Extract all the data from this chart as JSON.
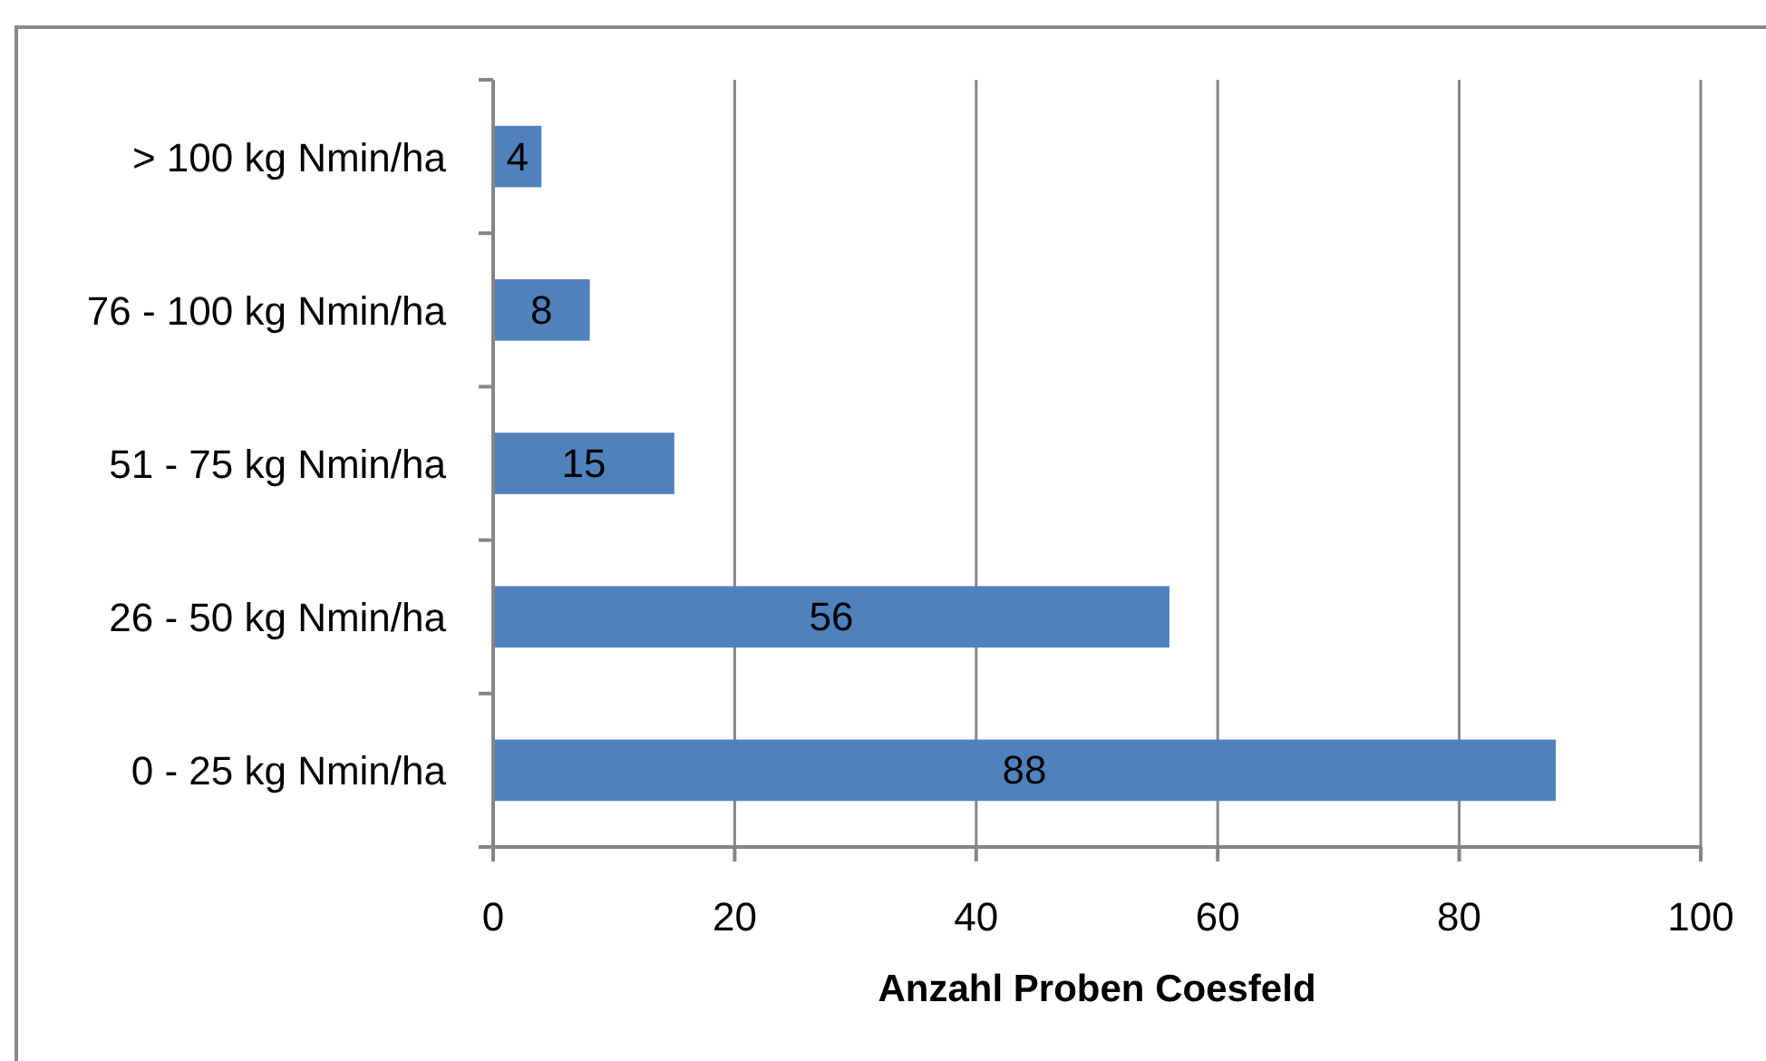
{
  "chart_data": {
    "type": "bar",
    "orientation": "horizontal",
    "xlabel": "Anzahl Proben Coesfeld",
    "categories": [
      "> 100 kg Nmin/ha",
      "76 - 100 kg Nmin/ha",
      "51 - 75 kg Nmin/ha",
      "26 - 50 kg Nmin/ha",
      "0 - 25 kg Nmin/ha"
    ],
    "values": [
      4,
      8,
      15,
      56,
      88
    ],
    "color": "#4f81bd",
    "xlim": [
      0,
      100
    ],
    "xticks": [
      0,
      20,
      40,
      60,
      80,
      100
    ],
    "grid": "x",
    "data_labels": true
  }
}
